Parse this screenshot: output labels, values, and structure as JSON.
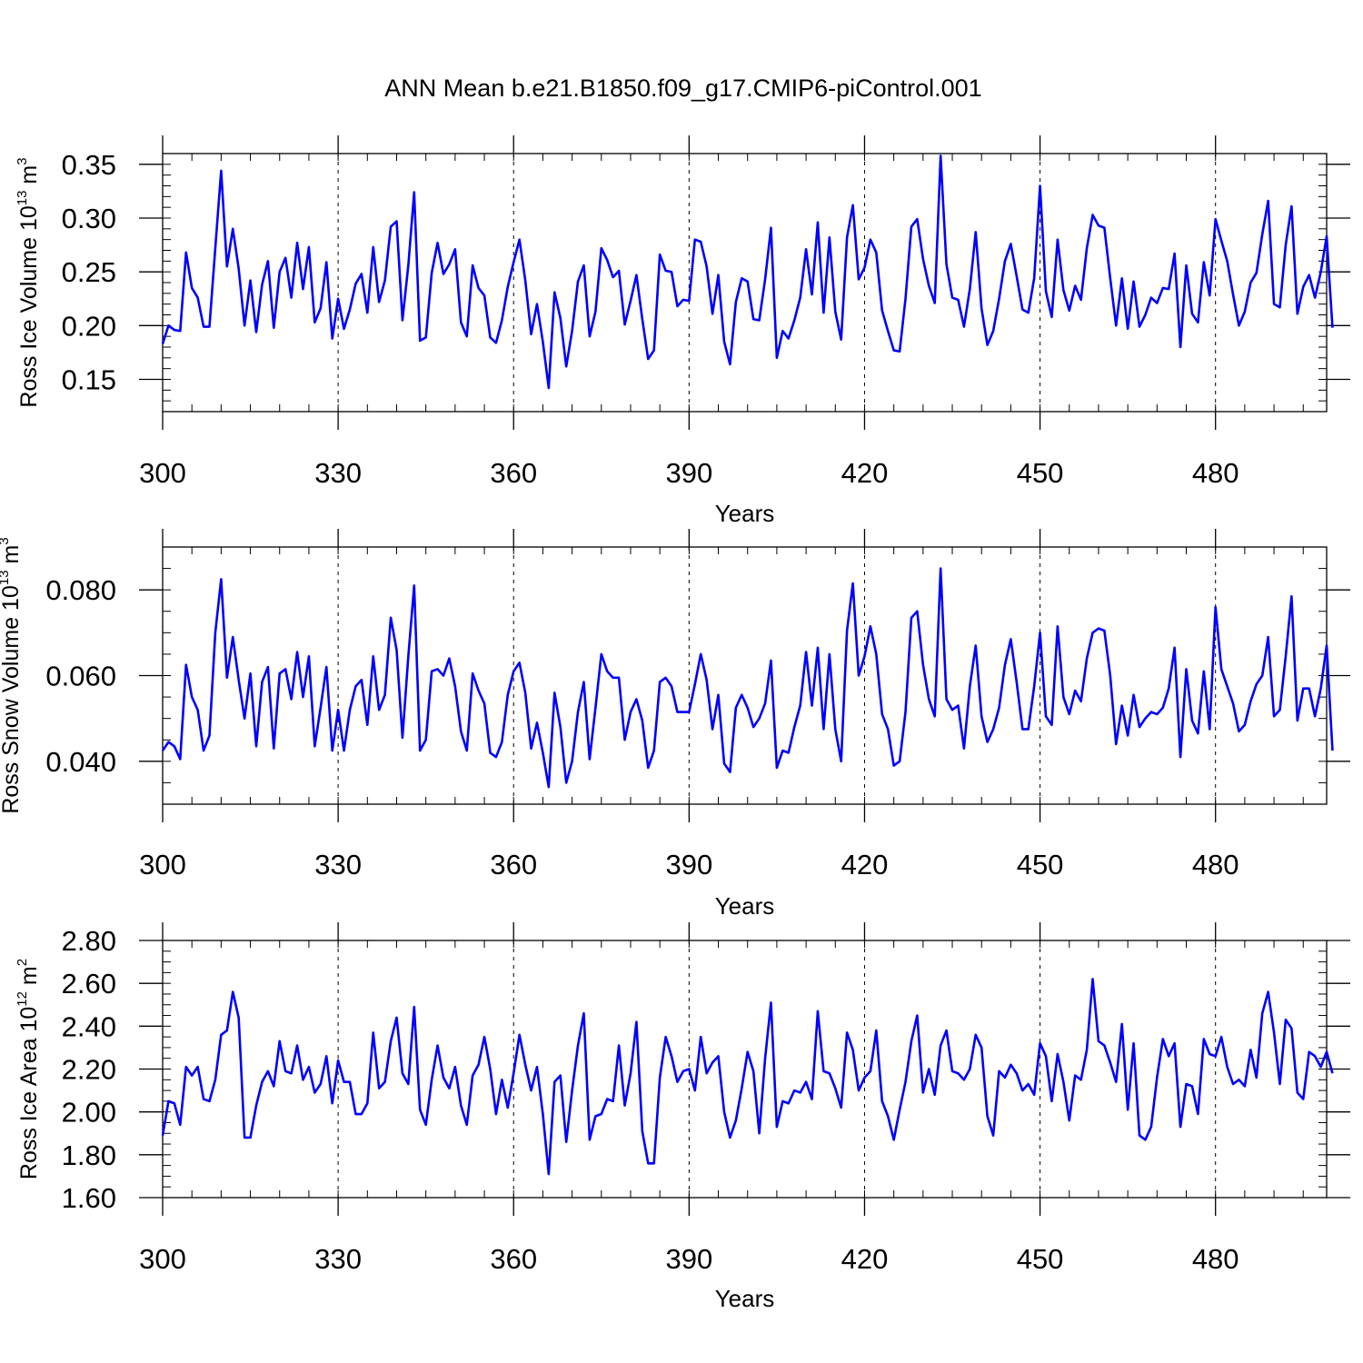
{
  "chart_data": {
    "title": "ANN Mean b.e21.B1850.f09_g17.CMIP6-piControl.001",
    "series_color": "#0000ff",
    "panels": [
      {
        "type": "line",
        "name": "ice-volume",
        "ylabel_main": "Ross Ice Volume 10",
        "ylabel_exp": "13",
        "ylabel_unit": " m",
        "ylabel_unit_exp": "3",
        "xlabel": "Years",
        "xlim": [
          300,
          499
        ],
        "ylim": [
          0.12,
          0.36
        ],
        "yticks": [
          0.15,
          0.2,
          0.25,
          0.3,
          0.35
        ],
        "ytick_labels": [
          "0.15",
          "0.20",
          "0.25",
          "0.30",
          "0.35"
        ],
        "yminor_step": 0.01,
        "xticks": [
          300,
          330,
          360,
          390,
          420,
          450,
          480
        ],
        "xtick_labels": [
          "300",
          "330",
          "360",
          "390",
          "420",
          "450",
          "480"
        ],
        "xminor_step": 5,
        "x_start": 300,
        "values": [
          0.183,
          0.2,
          0.196,
          0.195,
          0.268,
          0.235,
          0.226,
          0.199,
          0.199,
          0.272,
          0.344,
          0.255,
          0.29,
          0.253,
          0.2,
          0.242,
          0.194,
          0.238,
          0.26,
          0.198,
          0.25,
          0.263,
          0.226,
          0.277,
          0.234,
          0.273,
          0.203,
          0.216,
          0.259,
          0.188,
          0.225,
          0.197,
          0.215,
          0.239,
          0.248,
          0.212,
          0.273,
          0.222,
          0.242,
          0.292,
          0.297,
          0.205,
          0.256,
          0.324,
          0.186,
          0.189,
          0.249,
          0.277,
          0.248,
          0.257,
          0.271,
          0.203,
          0.19,
          0.256,
          0.235,
          0.228,
          0.189,
          0.184,
          0.205,
          0.236,
          0.259,
          0.28,
          0.242,
          0.192,
          0.22,
          0.185,
          0.142,
          0.231,
          0.207,
          0.162,
          0.195,
          0.241,
          0.256,
          0.19,
          0.213,
          0.272,
          0.261,
          0.245,
          0.251,
          0.201,
          0.223,
          0.247,
          0.206,
          0.169,
          0.177,
          0.266,
          0.251,
          0.25,
          0.218,
          0.224,
          0.223,
          0.28,
          0.278,
          0.255,
          0.211,
          0.247,
          0.185,
          0.164,
          0.222,
          0.244,
          0.241,
          0.206,
          0.205,
          0.243,
          0.291,
          0.17,
          0.195,
          0.188,
          0.205,
          0.226,
          0.271,
          0.229,
          0.296,
          0.212,
          0.282,
          0.213,
          0.187,
          0.282,
          0.312,
          0.243,
          0.254,
          0.28,
          0.268,
          0.214,
          0.195,
          0.177,
          0.176,
          0.225,
          0.292,
          0.299,
          0.262,
          0.237,
          0.221,
          0.358,
          0.257,
          0.226,
          0.224,
          0.199,
          0.234,
          0.287,
          0.216,
          0.182,
          0.195,
          0.225,
          0.26,
          0.276,
          0.246,
          0.215,
          0.212,
          0.244,
          0.33,
          0.232,
          0.208,
          0.28,
          0.233,
          0.214,
          0.237,
          0.224,
          0.272,
          0.303,
          0.293,
          0.291,
          0.244,
          0.2,
          0.244,
          0.197,
          0.241,
          0.199,
          0.21,
          0.226,
          0.221,
          0.235,
          0.234,
          0.267,
          0.18,
          0.256,
          0.211,
          0.203,
          0.259,
          0.228,
          0.299,
          0.279,
          0.26,
          0.229,
          0.2,
          0.213,
          0.24,
          0.249,
          0.285,
          0.316,
          0.22,
          0.217,
          0.275,
          0.311,
          0.211,
          0.236,
          0.247,
          0.226,
          0.25,
          0.283,
          0.198
        ]
      },
      {
        "type": "line",
        "name": "snow-volume",
        "ylabel_main": "Ross Snow Volume 10",
        "ylabel_exp": "13",
        "ylabel_unit": " m",
        "ylabel_unit_exp": "3",
        "xlabel": "Years",
        "xlim": [
          300,
          499
        ],
        "ylim": [
          0.03,
          0.09
        ],
        "yticks": [
          0.04,
          0.06,
          0.08
        ],
        "ytick_labels": [
          "0.040",
          "0.060",
          "0.080"
        ],
        "yminor_step": 0.005,
        "xticks": [
          300,
          330,
          360,
          390,
          420,
          450,
          480
        ],
        "xtick_labels": [
          "300",
          "330",
          "360",
          "390",
          "420",
          "450",
          "480"
        ],
        "xminor_step": 5,
        "x_start": 300,
        "values": [
          0.0425,
          0.0445,
          0.0435,
          0.0405,
          0.0625,
          0.055,
          0.052,
          0.0425,
          0.046,
          0.07,
          0.0825,
          0.0595,
          0.069,
          0.059,
          0.05,
          0.0605,
          0.0435,
          0.0585,
          0.062,
          0.043,
          0.0605,
          0.0615,
          0.0545,
          0.0655,
          0.055,
          0.0645,
          0.0435,
          0.0525,
          0.062,
          0.0425,
          0.052,
          0.0425,
          0.052,
          0.0575,
          0.059,
          0.0485,
          0.0645,
          0.052,
          0.0555,
          0.0735,
          0.066,
          0.0455,
          0.0645,
          0.081,
          0.0425,
          0.045,
          0.061,
          0.0615,
          0.06,
          0.064,
          0.0575,
          0.047,
          0.0425,
          0.0605,
          0.0565,
          0.0535,
          0.042,
          0.041,
          0.0445,
          0.0555,
          0.061,
          0.063,
          0.056,
          0.043,
          0.049,
          0.042,
          0.034,
          0.056,
          0.048,
          0.035,
          0.04,
          0.0515,
          0.0585,
          0.0405,
          0.0525,
          0.065,
          0.061,
          0.0595,
          0.0595,
          0.045,
          0.0515,
          0.0545,
          0.0495,
          0.0385,
          0.0425,
          0.0585,
          0.0595,
          0.0575,
          0.0515,
          0.0515,
          0.0515,
          0.058,
          0.065,
          0.059,
          0.0475,
          0.0555,
          0.0395,
          0.0375,
          0.0525,
          0.0555,
          0.0525,
          0.048,
          0.05,
          0.0535,
          0.0635,
          0.0385,
          0.0425,
          0.042,
          0.048,
          0.053,
          0.0655,
          0.053,
          0.0665,
          0.0475,
          0.065,
          0.0475,
          0.04,
          0.0705,
          0.0815,
          0.06,
          0.0645,
          0.0715,
          0.065,
          0.051,
          0.0475,
          0.039,
          0.04,
          0.0515,
          0.0735,
          0.075,
          0.0625,
          0.0545,
          0.0505,
          0.085,
          0.0545,
          0.052,
          0.053,
          0.043,
          0.0575,
          0.067,
          0.0505,
          0.0445,
          0.0475,
          0.0525,
          0.0625,
          0.0685,
          0.0585,
          0.0475,
          0.0475,
          0.0575,
          0.07,
          0.0505,
          0.0485,
          0.0715,
          0.055,
          0.051,
          0.0565,
          0.054,
          0.064,
          0.07,
          0.071,
          0.0705,
          0.06,
          0.044,
          0.053,
          0.046,
          0.0555,
          0.048,
          0.05,
          0.0515,
          0.051,
          0.0525,
          0.057,
          0.0665,
          0.041,
          0.0615,
          0.0495,
          0.0465,
          0.061,
          0.0475,
          0.076,
          0.0615,
          0.0575,
          0.0535,
          0.047,
          0.0485,
          0.054,
          0.058,
          0.06,
          0.069,
          0.0505,
          0.052,
          0.0645,
          0.0785,
          0.0495,
          0.057,
          0.057,
          0.0505,
          0.057,
          0.067,
          0.0425
        ]
      },
      {
        "type": "line",
        "name": "ice-area",
        "ylabel_main": "Ross Ice Area 10",
        "ylabel_exp": "12",
        "ylabel_unit": " m",
        "ylabel_unit_exp": "2",
        "xlabel": "Years",
        "xlim": [
          300,
          499
        ],
        "ylim": [
          1.6,
          2.8
        ],
        "yticks": [
          1.6,
          1.8,
          2.0,
          2.2,
          2.4,
          2.6,
          2.8
        ],
        "ytick_labels": [
          "1.60",
          "1.80",
          "2.00",
          "2.20",
          "2.40",
          "2.60",
          "2.80"
        ],
        "yminor_step": 0.05,
        "xticks": [
          300,
          330,
          360,
          390,
          420,
          450,
          480
        ],
        "xtick_labels": [
          "300",
          "330",
          "360",
          "390",
          "420",
          "450",
          "480"
        ],
        "xminor_step": 5,
        "x_start": 300,
        "values": [
          1.89,
          2.05,
          2.04,
          1.94,
          2.21,
          2.17,
          2.21,
          2.06,
          2.05,
          2.15,
          2.36,
          2.38,
          2.56,
          2.44,
          1.88,
          1.88,
          2.03,
          2.14,
          2.19,
          2.12,
          2.33,
          2.19,
          2.18,
          2.31,
          2.15,
          2.21,
          2.09,
          2.13,
          2.26,
          2.04,
          2.24,
          2.14,
          2.14,
          1.99,
          1.99,
          2.04,
          2.37,
          2.11,
          2.14,
          2.33,
          2.44,
          2.18,
          2.13,
          2.49,
          2.01,
          1.94,
          2.15,
          2.31,
          2.16,
          2.11,
          2.21,
          2.03,
          1.94,
          2.17,
          2.22,
          2.35,
          2.2,
          1.99,
          2.15,
          2.02,
          2.18,
          2.36,
          2.22,
          2.1,
          2.21,
          1.99,
          1.71,
          2.14,
          2.17,
          1.86,
          2.1,
          2.31,
          2.46,
          1.87,
          1.98,
          1.99,
          2.06,
          2.05,
          2.31,
          2.03,
          2.18,
          2.42,
          1.91,
          1.76,
          1.76,
          2.16,
          2.35,
          2.26,
          2.14,
          2.19,
          2.2,
          2.1,
          2.35,
          2.18,
          2.23,
          2.26,
          2.0,
          1.88,
          1.96,
          2.11,
          2.28,
          2.19,
          1.9,
          2.25,
          2.51,
          1.93,
          2.05,
          2.04,
          2.1,
          2.09,
          2.14,
          2.06,
          2.47,
          2.19,
          2.18,
          2.11,
          2.02,
          2.37,
          2.29,
          2.1,
          2.16,
          2.19,
          2.38,
          2.05,
          1.98,
          1.87,
          2.01,
          2.14,
          2.33,
          2.45,
          2.09,
          2.2,
          2.08,
          2.31,
          2.38,
          2.19,
          2.18,
          2.15,
          2.2,
          2.36,
          2.3,
          1.98,
          1.89,
          2.19,
          2.16,
          2.22,
          2.18,
          2.1,
          2.13,
          2.08,
          2.32,
          2.26,
          2.05,
          2.27,
          2.14,
          1.96,
          2.17,
          2.15,
          2.29,
          2.62,
          2.33,
          2.31,
          2.23,
          2.14,
          2.41,
          2.01,
          2.32,
          1.89,
          1.87,
          1.93,
          2.16,
          2.34,
          2.26,
          2.32,
          1.93,
          2.13,
          2.12,
          1.99,
          2.34,
          2.27,
          2.26,
          2.35,
          2.21,
          2.13,
          2.15,
          2.12,
          2.29,
          2.16,
          2.46,
          2.56,
          2.37,
          2.13,
          2.43,
          2.39,
          2.09,
          2.06,
          2.28,
          2.26,
          2.21,
          2.28,
          2.18
        ]
      }
    ]
  }
}
